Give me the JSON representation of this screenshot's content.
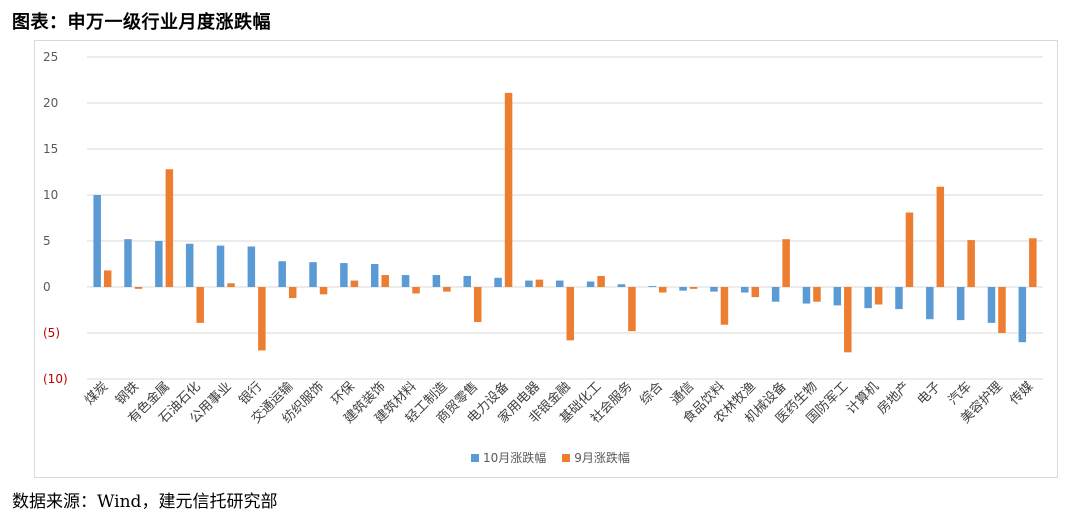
{
  "page": {
    "title": "图表：申万一级行业月度涨跌幅",
    "source": "数据来源：Wind，建元信托研究部"
  },
  "colors": {
    "series_oct": "#5b9bd5",
    "series_sep": "#ed7d31",
    "negative_tick": "#c00000",
    "grid": "#d9d9d9",
    "tick_text": "#595959"
  },
  "chart_data": {
    "type": "bar",
    "categories": [
      "煤炭",
      "钢铁",
      "有色金属",
      "石油石化",
      "公用事业",
      "银行",
      "交通运输",
      "纺织服饰",
      "环保",
      "建筑装饰",
      "建筑材料",
      "轻工制造",
      "商贸零售",
      "电力设备",
      "家用电器",
      "非银金融",
      "基础化工",
      "社会服务",
      "综合",
      "通信",
      "食品饮料",
      "农林牧渔",
      "机械设备",
      "医药生物",
      "国防军工",
      "计算机",
      "房地产",
      "电子",
      "汽车",
      "美容护理",
      "传媒"
    ],
    "series": [
      {
        "name": "10月涨跌幅",
        "values": [
          10.0,
          5.2,
          5.0,
          4.7,
          4.5,
          4.4,
          2.8,
          2.7,
          2.6,
          2.5,
          1.3,
          1.3,
          1.2,
          1.0,
          0.7,
          0.7,
          0.6,
          0.3,
          0.1,
          -0.4,
          -0.5,
          -0.6,
          -1.6,
          -1.8,
          -2.0,
          -2.3,
          -2.4,
          -3.5,
          -3.6,
          -3.9,
          -6.0
        ]
      },
      {
        "name": "9月涨跌幅",
        "values": [
          1.8,
          -0.2,
          12.8,
          -3.9,
          0.4,
          -6.9,
          -1.2,
          -0.8,
          0.7,
          1.3,
          -0.7,
          -0.5,
          -3.8,
          21.1,
          0.8,
          -5.8,
          1.2,
          -4.8,
          -0.6,
          -0.2,
          -4.1,
          -1.1,
          5.2,
          -1.6,
          -7.1,
          -1.9,
          8.1,
          10.9,
          5.1,
          -5.0,
          5.3
        ]
      }
    ],
    "ylim": [
      -10,
      25
    ],
    "yticks": [
      {
        "value": 25,
        "label": "25",
        "negative": false
      },
      {
        "value": 20,
        "label": "20",
        "negative": false
      },
      {
        "value": 15,
        "label": "15",
        "negative": false
      },
      {
        "value": 10,
        "label": "10",
        "negative": false
      },
      {
        "value": 5,
        "label": "5",
        "negative": false
      },
      {
        "value": 0,
        "label": "0",
        "negative": false
      },
      {
        "value": -5,
        "label": "(5)",
        "negative": true
      },
      {
        "value": -10,
        "label": "(10)",
        "negative": true
      }
    ],
    "grid": true,
    "legend_position": "bottom"
  }
}
